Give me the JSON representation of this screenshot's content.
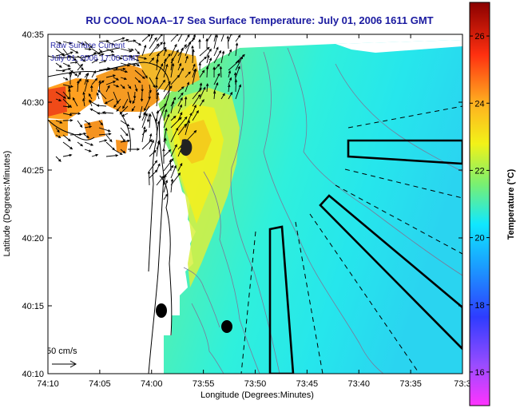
{
  "title": "RU COOL  NOAA–17  Sea Surface Temperature:  July 01, 2006 1611 GMT",
  "legend": {
    "line1": "Raw Surface Current",
    "line2": "July 01, 2006 17:00 GMT"
  },
  "scale": {
    "label": "50 cm/s"
  },
  "axes": {
    "xlabel": "Longitude (Degrees:Minutes)",
    "ylabel": "Latitude (Degrees:Minutes)",
    "xticks": [
      "74:10",
      "74:05",
      "74:00",
      "73:55",
      "73:50",
      "73:45",
      "73:40",
      "73:35",
      "73:3"
    ],
    "yticks": [
      "40:35",
      "40:30",
      "40:25",
      "40:20",
      "40:15",
      "40:10"
    ]
  },
  "colorbar": {
    "label": "Temperature (°C)",
    "ticks": [
      "26",
      "24",
      "22",
      "20",
      "18",
      "16"
    ],
    "range": [
      15,
      27
    ]
  },
  "colors": {
    "title": "#1a1aa0",
    "land": "#ffffff"
  }
}
